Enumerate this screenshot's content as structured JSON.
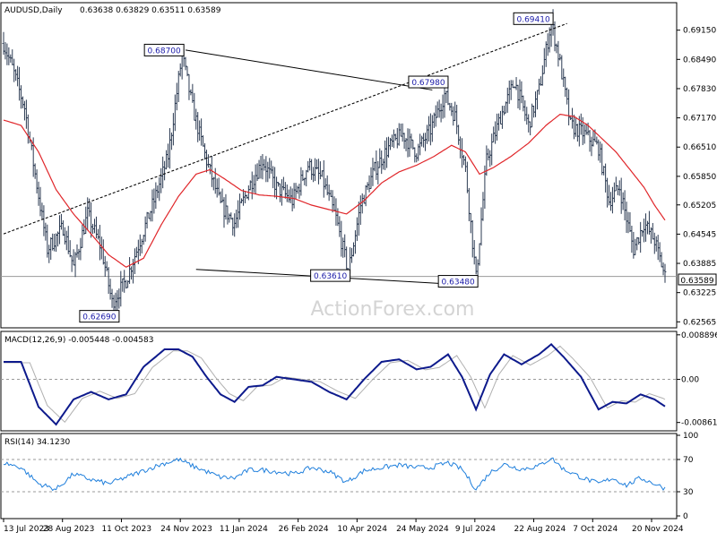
{
  "header": {
    "symbol": "AUDUSD,Daily",
    "ohlc": "0.63638 0.63829 0.63511 0.63589",
    "watermark": "ActionForex.com"
  },
  "price_panel": {
    "current_price": "0.63589",
    "y_ticks": [
      "0.69150",
      "0.68490",
      "0.67830",
      "0.67170",
      "0.66510",
      "0.65850",
      "0.65205",
      "0.64545",
      "0.63885",
      "0.63225",
      "0.62565"
    ],
    "ylim": [
      0.6245,
      0.6975
    ]
  },
  "macd_panel": {
    "label": "MACD(12,26,9) -0.005448 -0.004583",
    "y_ticks": [
      "0.008896",
      "0.00",
      "-0.008612"
    ],
    "ylim": [
      -0.0101,
      0.0094
    ]
  },
  "rsi_panel": {
    "label": "RSI(14) 34.1230",
    "y_ticks": [
      "100",
      "70",
      "30",
      "0"
    ],
    "levels": [
      70,
      30
    ]
  },
  "x_ticks": [
    "13 Jul 2023",
    "28 Aug 2023",
    "11 Oct 2023",
    "24 Nov 2023",
    "11 Jan 2024",
    "26 Feb 2024",
    "10 Apr 2024",
    "24 May 2024",
    "9 Jul 2024",
    "22 Aug 2024",
    "7 Oct 2024",
    "20 Nov 2024"
  ],
  "colors": {
    "price": "#2b3a52",
    "ma": "#e0262a",
    "macd": "#0d1a8c",
    "signal": "#b0b0b0",
    "rsi": "#1f7fdc",
    "label_text": "#1a1aa8",
    "grid": "#9a9a9a"
  },
  "annotations": [
    {
      "label": "0.62690",
      "date_index": 65,
      "price": 0.6269
    },
    {
      "label": "0.68700",
      "date_index": 102,
      "price": 0.687
    },
    {
      "label": "0.63610",
      "date_index": 197,
      "price": 0.6361
    },
    {
      "label": "0.67980",
      "date_index": 253,
      "price": 0.6798
    },
    {
      "label": "0.63480",
      "date_index": 270,
      "price": 0.6348
    },
    {
      "label": "0.69410",
      "date_index": 313,
      "price": 0.6941
    }
  ],
  "chart_data": {
    "type": "line",
    "title": "AUDUSD,Daily",
    "x_dates": [
      "13 Jul 2023",
      "28 Aug 2023",
      "11 Oct 2023",
      "24 Nov 2023",
      "11 Jan 2024",
      "26 Feb 2024",
      "10 Apr 2024",
      "24 May 2024",
      "9 Jul 2024",
      "22 Aug 2024",
      "7 Oct 2024",
      "20 Nov 2024"
    ],
    "series": [
      {
        "name": "AUDUSD",
        "points": [
          [
            0,
            0.6885
          ],
          [
            5,
            0.683
          ],
          [
            12,
            0.674
          ],
          [
            18,
            0.659
          ],
          [
            25,
            0.642
          ],
          [
            34,
            0.647
          ],
          [
            40,
            0.638
          ],
          [
            48,
            0.65
          ],
          [
            56,
            0.642
          ],
          [
            62,
            0.63
          ],
          [
            70,
            0.635
          ],
          [
            78,
            0.644
          ],
          [
            86,
            0.653
          ],
          [
            94,
            0.663
          ],
          [
            102,
            0.686
          ],
          [
            108,
            0.674
          ],
          [
            116,
            0.662
          ],
          [
            124,
            0.652
          ],
          [
            132,
            0.648
          ],
          [
            140,
            0.656
          ],
          [
            148,
            0.662
          ],
          [
            156,
            0.656
          ],
          [
            165,
            0.653
          ],
          [
            174,
            0.661
          ],
          [
            182,
            0.658
          ],
          [
            190,
            0.649
          ],
          [
            197,
            0.637
          ],
          [
            204,
            0.652
          ],
          [
            212,
            0.66
          ],
          [
            220,
            0.665
          ],
          [
            228,
            0.668
          ],
          [
            236,
            0.664
          ],
          [
            244,
            0.669
          ],
          [
            252,
            0.677
          ],
          [
            258,
            0.672
          ],
          [
            264,
            0.66
          ],
          [
            270,
            0.6355
          ],
          [
            276,
            0.662
          ],
          [
            284,
            0.672
          ],
          [
            292,
            0.68
          ],
          [
            300,
            0.67
          ],
          [
            306,
            0.678
          ],
          [
            313,
            0.6935
          ],
          [
            318,
            0.684
          ],
          [
            324,
            0.67
          ],
          [
            332,
            0.668
          ],
          [
            340,
            0.665
          ],
          [
            346,
            0.653
          ],
          [
            352,
            0.656
          ],
          [
            360,
            0.642
          ],
          [
            366,
            0.648
          ],
          [
            372,
            0.644
          ],
          [
            378,
            0.6359
          ]
        ]
      },
      {
        "name": "MA",
        "points": [
          [
            0,
            0.6712
          ],
          [
            10,
            0.67
          ],
          [
            20,
            0.664
          ],
          [
            30,
            0.6555
          ],
          [
            40,
            0.65
          ],
          [
            50,
            0.6455
          ],
          [
            60,
            0.6408
          ],
          [
            70,
            0.638
          ],
          [
            80,
            0.64
          ],
          [
            90,
            0.6475
          ],
          [
            100,
            0.654
          ],
          [
            110,
            0.659
          ],
          [
            118,
            0.66
          ],
          [
            126,
            0.658
          ],
          [
            136,
            0.6553
          ],
          [
            146,
            0.6543
          ],
          [
            156,
            0.654
          ],
          [
            166,
            0.6535
          ],
          [
            176,
            0.652
          ],
          [
            186,
            0.651
          ],
          [
            196,
            0.65
          ],
          [
            206,
            0.653
          ],
          [
            216,
            0.657
          ],
          [
            226,
            0.6595
          ],
          [
            236,
            0.661
          ],
          [
            246,
            0.663
          ],
          [
            256,
            0.6655
          ],
          [
            264,
            0.664
          ],
          [
            272,
            0.659
          ],
          [
            280,
            0.6605
          ],
          [
            290,
            0.663
          ],
          [
            300,
            0.666
          ],
          [
            310,
            0.67
          ],
          [
            318,
            0.6725
          ],
          [
            326,
            0.672
          ],
          [
            334,
            0.67
          ],
          [
            342,
            0.667
          ],
          [
            350,
            0.664
          ],
          [
            358,
            0.66
          ],
          [
            366,
            0.656
          ],
          [
            372,
            0.652
          ],
          [
            378,
            0.6486
          ]
        ]
      }
    ],
    "macd": {
      "points": [
        [
          0,
          0.0035
        ],
        [
          10,
          0.0035
        ],
        [
          20,
          -0.0055
        ],
        [
          30,
          -0.009
        ],
        [
          40,
          -0.004
        ],
        [
          50,
          -0.0025
        ],
        [
          60,
          -0.004
        ],
        [
          70,
          -0.003
        ],
        [
          80,
          0.0025
        ],
        [
          92,
          0.006
        ],
        [
          100,
          0.006
        ],
        [
          108,
          0.0045
        ],
        [
          116,
          0.0005
        ],
        [
          124,
          -0.003
        ],
        [
          132,
          -0.0045
        ],
        [
          140,
          -0.0015
        ],
        [
          148,
          -0.0012
        ],
        [
          156,
          0.0005
        ],
        [
          166,
          0.0
        ],
        [
          176,
          -0.0005
        ],
        [
          186,
          -0.0025
        ],
        [
          196,
          -0.004
        ],
        [
          206,
          0.0
        ],
        [
          216,
          0.0035
        ],
        [
          226,
          0.004
        ],
        [
          236,
          0.002
        ],
        [
          244,
          0.0025
        ],
        [
          254,
          0.005
        ],
        [
          262,
          0.0005
        ],
        [
          270,
          -0.006
        ],
        [
          278,
          0.001
        ],
        [
          286,
          0.005
        ],
        [
          296,
          0.003
        ],
        [
          306,
          0.005
        ],
        [
          313,
          0.007
        ],
        [
          320,
          0.0045
        ],
        [
          330,
          0.0005
        ],
        [
          340,
          -0.006
        ],
        [
          348,
          -0.0045
        ],
        [
          356,
          -0.0048
        ],
        [
          364,
          -0.003
        ],
        [
          372,
          -0.004
        ],
        [
          378,
          -0.0054
        ]
      ]
    },
    "rsi": {
      "points": [
        [
          0,
          66
        ],
        [
          10,
          60
        ],
        [
          20,
          40
        ],
        [
          30,
          33
        ],
        [
          40,
          52
        ],
        [
          50,
          45
        ],
        [
          60,
          40
        ],
        [
          70,
          48
        ],
        [
          80,
          56
        ],
        [
          90,
          64
        ],
        [
          100,
          70
        ],
        [
          108,
          62
        ],
        [
          116,
          55
        ],
        [
          124,
          48
        ],
        [
          132,
          47
        ],
        [
          140,
          57
        ],
        [
          148,
          57
        ],
        [
          156,
          55
        ],
        [
          166,
          52
        ],
        [
          176,
          60
        ],
        [
          186,
          55
        ],
        [
          196,
          42
        ],
        [
          206,
          56
        ],
        [
          216,
          60
        ],
        [
          226,
          63
        ],
        [
          236,
          60
        ],
        [
          244,
          60
        ],
        [
          254,
          66
        ],
        [
          262,
          58
        ],
        [
          270,
          33
        ],
        [
          278,
          54
        ],
        [
          286,
          64
        ],
        [
          296,
          58
        ],
        [
          306,
          62
        ],
        [
          313,
          72
        ],
        [
          320,
          58
        ],
        [
          330,
          48
        ],
        [
          340,
          40
        ],
        [
          348,
          47
        ],
        [
          356,
          38
        ],
        [
          364,
          47
        ],
        [
          372,
          40
        ],
        [
          378,
          34.1
        ]
      ]
    },
    "trendlines": [
      {
        "from": [
          0,
          0.6455
        ],
        "to": [
          322,
          0.693
        ],
        "style": "dotted"
      },
      {
        "from": [
          104,
          0.687
        ],
        "to": [
          245,
          0.678
        ],
        "style": "solid"
      },
      {
        "from": [
          110,
          0.6375
        ],
        "to": [
          263,
          0.634
        ],
        "style": "solid"
      }
    ],
    "ylim": [
      0.6245,
      0.6975
    ],
    "grid": true
  }
}
